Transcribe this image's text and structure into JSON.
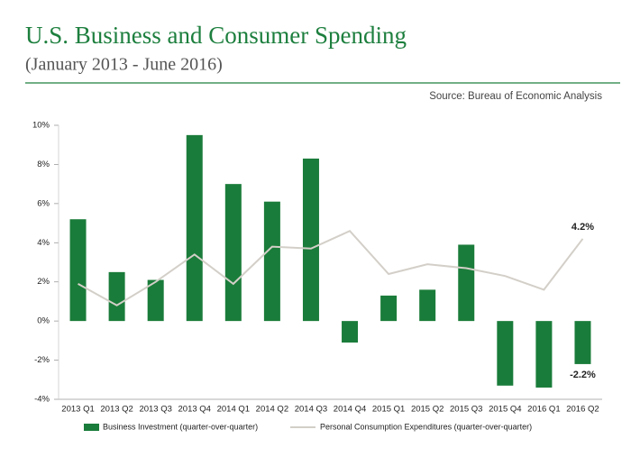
{
  "chart_data": {
    "type": "bar",
    "title": "U.S. Business and Consumer Spending",
    "subtitle": "(January 2013 - June 2016)",
    "source": "Source: Bureau of Economic Analysis",
    "categories": [
      "2013 Q1",
      "2013 Q2",
      "2013 Q3",
      "2013 Q4",
      "2014 Q1",
      "2014 Q2",
      "2014 Q3",
      "2014 Q4",
      "2015 Q1",
      "2015 Q2",
      "2015 Q3",
      "2015 Q4",
      "2016 Q1",
      "2016 Q2"
    ],
    "series": [
      {
        "name": "Business Investment (quarter-over-quarter)",
        "type": "bar",
        "color": "#1a7c3a",
        "values": [
          5.2,
          2.5,
          2.1,
          9.5,
          7.0,
          6.1,
          8.3,
          -1.1,
          1.3,
          1.6,
          3.9,
          -3.3,
          -3.4,
          -2.2
        ],
        "value_labels": [
          null,
          null,
          null,
          null,
          null,
          null,
          null,
          null,
          null,
          null,
          null,
          null,
          null,
          "-2.2%"
        ]
      },
      {
        "name": "Personal Consumption  Expenditures (quarter-over-quarter)",
        "type": "line",
        "color": "#d3cfc8",
        "values": [
          1.9,
          0.8,
          2.0,
          3.4,
          1.9,
          3.8,
          3.7,
          4.6,
          2.4,
          2.9,
          2.7,
          2.3,
          1.6,
          4.2
        ],
        "value_labels": [
          null,
          null,
          null,
          null,
          null,
          null,
          null,
          null,
          null,
          null,
          null,
          null,
          null,
          "4.2%"
        ]
      }
    ],
    "ylim": [
      -4,
      10
    ],
    "yticks": [
      {
        "value": 10,
        "label": "10%"
      },
      {
        "value": 8,
        "label": "8%"
      },
      {
        "value": 6,
        "label": "6%"
      },
      {
        "value": 4,
        "label": "4%"
      },
      {
        "value": 2,
        "label": "2%"
      },
      {
        "value": 0,
        "label": "0%"
      },
      {
        "value": -2,
        "label": "-2%"
      },
      {
        "value": -4,
        "label": "-4%"
      }
    ],
    "grid": false,
    "legend": "bottom"
  }
}
